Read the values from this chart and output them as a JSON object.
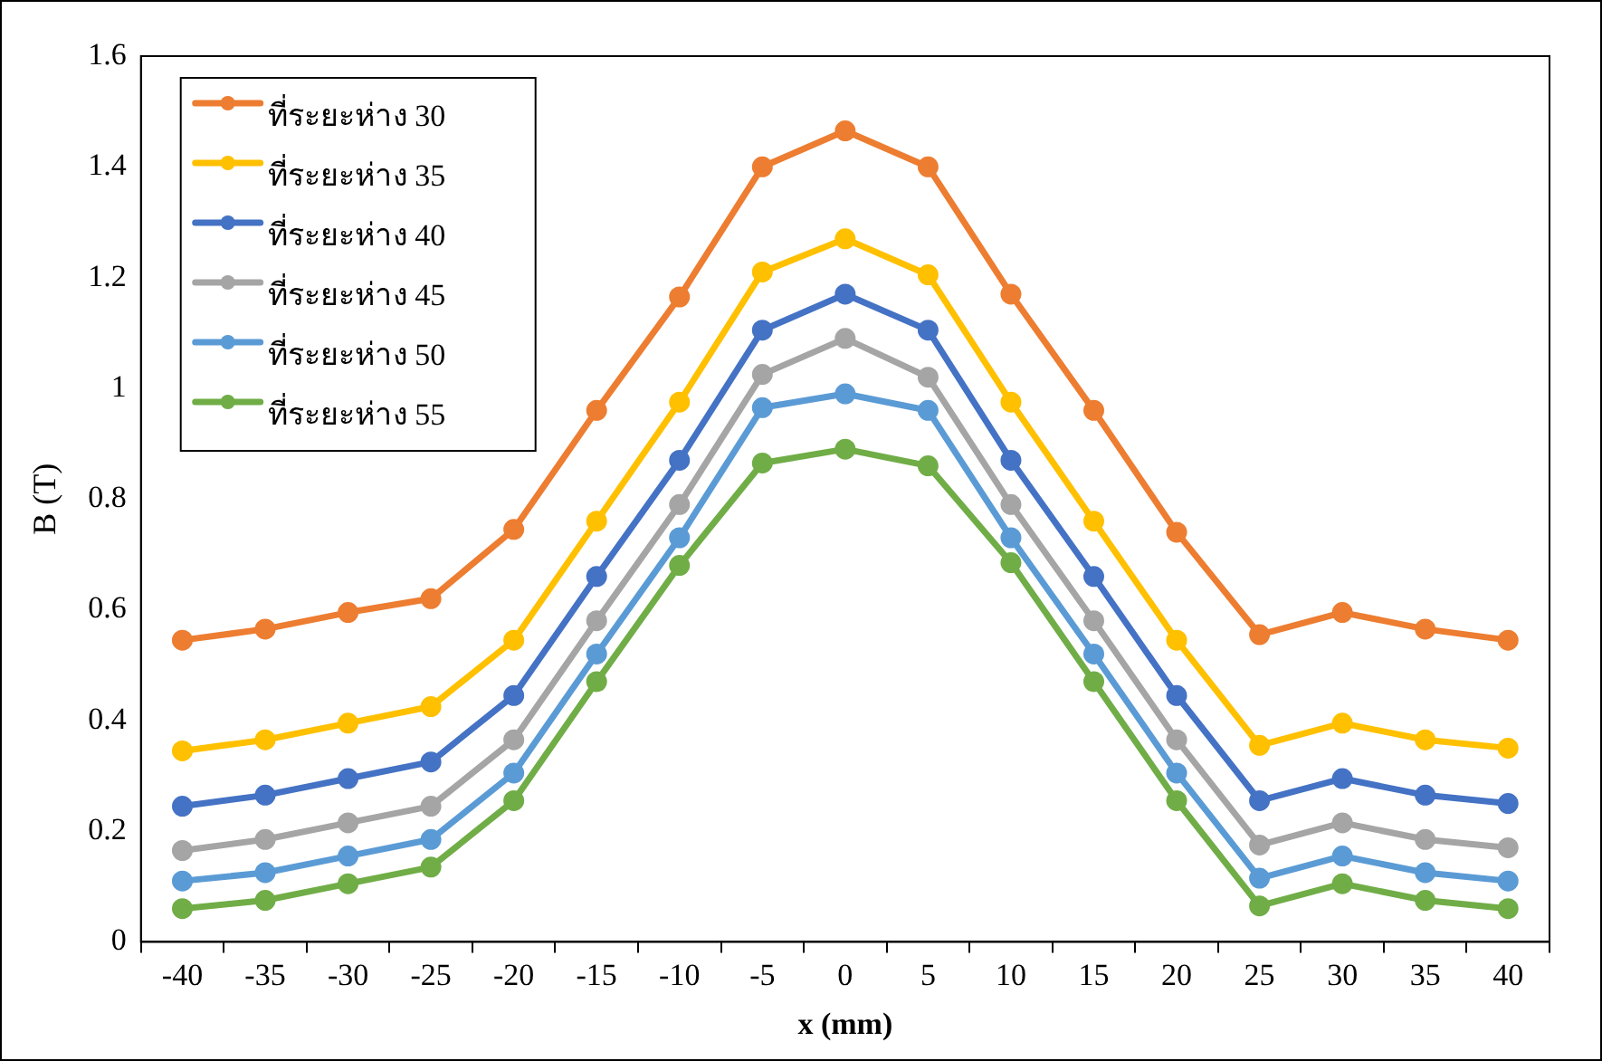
{
  "chart_data": {
    "type": "line",
    "xlabel": "x (mm)",
    "ylabel": "B (T)",
    "categories": [
      "-40",
      "-35",
      "-30",
      "-25",
      "-20",
      "-15",
      "-10",
      "-5",
      "0",
      "5",
      "10",
      "15",
      "20",
      "25",
      "30",
      "35",
      "40"
    ],
    "ylim": [
      0,
      1.6
    ],
    "yticks": [
      0,
      0.2,
      0.4,
      0.6,
      0.8,
      1,
      1.2,
      1.4,
      1.6
    ],
    "grid": false,
    "legend": "top left",
    "marker": "circle",
    "line_style": "solid",
    "series": [
      {
        "name": "ที่ระยะห่าง 30",
        "color": "#ed7d31",
        "values": [
          0.545,
          0.565,
          0.595,
          0.62,
          0.745,
          0.96,
          1.165,
          1.4,
          1.465,
          1.4,
          1.17,
          0.96,
          0.74,
          0.555,
          0.595,
          0.565,
          0.545
        ]
      },
      {
        "name": "ที่ระยะห่าง 35",
        "color": "#ffc000",
        "values": [
          0.345,
          0.365,
          0.395,
          0.425,
          0.545,
          0.76,
          0.975,
          1.21,
          1.27,
          1.205,
          0.975,
          0.76,
          0.545,
          0.355,
          0.395,
          0.365,
          0.35
        ]
      },
      {
        "name": "ที่ระยะห่าง 40",
        "color": "#4472c4",
        "values": [
          0.245,
          0.265,
          0.295,
          0.325,
          0.445,
          0.66,
          0.87,
          1.105,
          1.17,
          1.105,
          0.87,
          0.66,
          0.445,
          0.255,
          0.295,
          0.265,
          0.25
        ]
      },
      {
        "name": "ที่ระยะห่าง 45",
        "color": "#a5a5a5",
        "values": [
          0.165,
          0.185,
          0.215,
          0.245,
          0.365,
          0.58,
          0.79,
          1.025,
          1.09,
          1.02,
          0.79,
          0.58,
          0.365,
          0.175,
          0.215,
          0.185,
          0.17
        ]
      },
      {
        "name": "ที่ระยะห่าง 50",
        "color": "#5b9bd5",
        "values": [
          0.11,
          0.125,
          0.155,
          0.185,
          0.305,
          0.52,
          0.73,
          0.965,
          0.99,
          0.96,
          0.73,
          0.52,
          0.305,
          0.115,
          0.155,
          0.125,
          0.11
        ]
      },
      {
        "name": "ที่ระยะห่าง 55",
        "color": "#70ad47",
        "values": [
          0.06,
          0.075,
          0.105,
          0.135,
          0.255,
          0.47,
          0.68,
          0.865,
          0.89,
          0.86,
          0.685,
          0.47,
          0.255,
          0.065,
          0.105,
          0.075,
          0.06
        ]
      }
    ]
  }
}
